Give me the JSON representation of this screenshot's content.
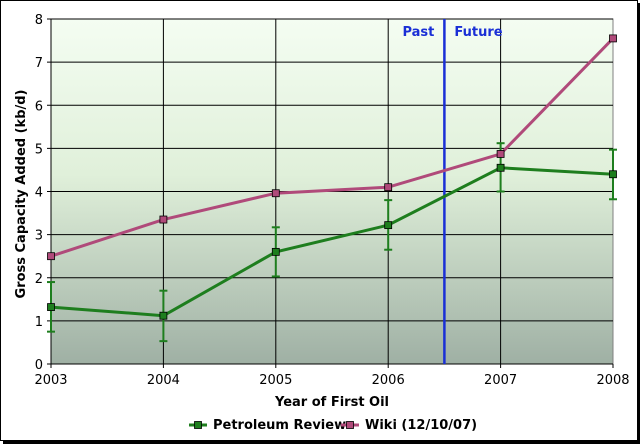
{
  "chart_data": {
    "type": "line",
    "title": "",
    "xlabel": "Year of First Oil",
    "ylabel": "Gross Capacity Added (kb/d)",
    "x": [
      2003,
      2004,
      2005,
      2006,
      2007,
      2008
    ],
    "xlim": [
      2003,
      2008
    ],
    "ylim": [
      0,
      8
    ],
    "yticks": [
      0,
      1,
      2,
      3,
      4,
      5,
      6,
      7,
      8
    ],
    "grid": true,
    "legend_placement": "bottom",
    "series": [
      {
        "name": "Petroleum Review",
        "color": "#1e7e1e",
        "marker": "square",
        "values": [
          1.32,
          1.12,
          2.6,
          3.22,
          4.55,
          4.4
        ],
        "error_low": [
          0.75,
          0.53,
          2.03,
          2.65,
          4.0,
          3.82
        ],
        "error_high": [
          1.9,
          1.7,
          3.17,
          3.8,
          5.12,
          4.97
        ]
      },
      {
        "name": "Wiki (12/10/07)",
        "color": "#b04a7a",
        "marker": "square",
        "values": [
          2.5,
          3.35,
          3.96,
          4.1,
          4.87,
          7.55
        ]
      }
    ],
    "annotations": [
      {
        "type": "vline",
        "x": 2006.5,
        "color": "#1a2fd6"
      },
      {
        "text": "Past",
        "x": 2006.5,
        "side": "left"
      },
      {
        "text": "Future",
        "x": 2006.5,
        "side": "right"
      }
    ]
  }
}
